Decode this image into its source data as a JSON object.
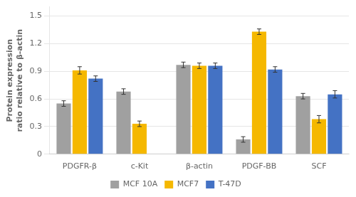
{
  "chart_data": {
    "type": "bar",
    "categories": [
      "PDGFR-β",
      "c-Kit",
      "β-actin",
      "PDGF-BB",
      "SCF"
    ],
    "series": [
      {
        "name": "MCF 10A",
        "color": "#a0a0a0",
        "values": [
          0.55,
          0.68,
          0.97,
          0.16,
          0.63
        ],
        "errors": [
          0.03,
          0.03,
          0.03,
          0.03,
          0.03
        ]
      },
      {
        "name": "MCF7",
        "color": "#f5b800",
        "values": [
          0.91,
          0.33,
          0.96,
          1.33,
          0.38
        ],
        "errors": [
          0.04,
          0.03,
          0.03,
          0.03,
          0.04
        ]
      },
      {
        "name": "T-47D",
        "color": "#4472c4",
        "values": [
          0.82,
          0.0,
          0.96,
          0.92,
          0.65
        ],
        "errors": [
          0.03,
          0.0,
          0.03,
          0.03,
          0.04
        ]
      }
    ],
    "ylabel": "Protein expression\nratio relative to β-actin",
    "ylim": [
      0,
      1.6
    ],
    "yticks": [
      0,
      0.3,
      0.6,
      0.9,
      1.2,
      1.5
    ],
    "grid": true,
    "legend": "bottom"
  }
}
